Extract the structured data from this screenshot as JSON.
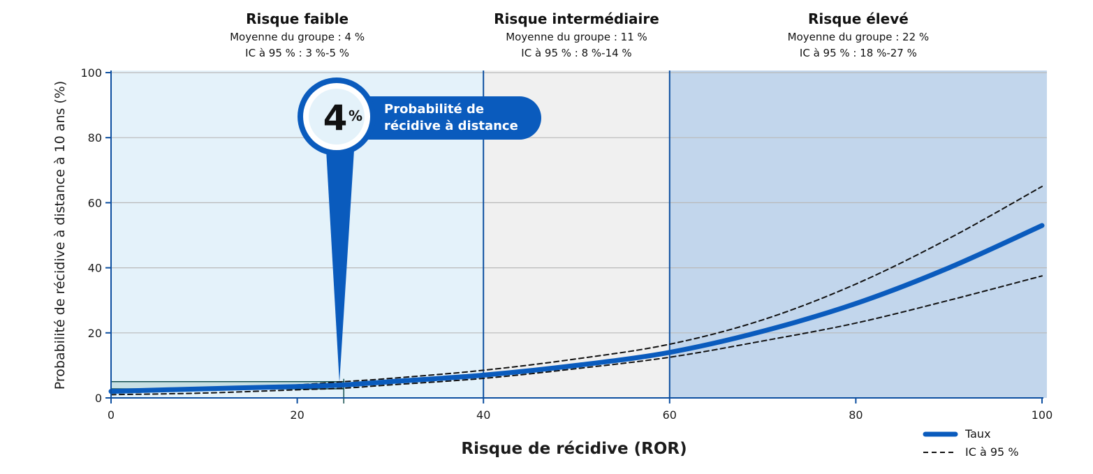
{
  "chart_data": {
    "type": "line",
    "title": "",
    "xlabel": "Risque de récidive (ROR)",
    "ylabel": "Probabilité de récidive à distance à 10 ans (%)",
    "xlim": [
      0,
      100
    ],
    "ylim": [
      0,
      100
    ],
    "xticks": [
      "0",
      "20",
      "40",
      "60",
      "80",
      "100"
    ],
    "yticks": [
      "0",
      "20",
      "40",
      "60",
      "80",
      "100"
    ],
    "grid": "horizontal",
    "legend_position": "bottom-right",
    "zones": [
      {
        "name": "Risque faible",
        "x_range": [
          0,
          40
        ],
        "line1": "Moyenne du groupe : 4 %",
        "line2": "IC à 95 % : 3 %-5 %",
        "color": "#e4f2fa"
      },
      {
        "name": "Risque intermédiaire",
        "x_range": [
          40,
          60
        ],
        "line1": "Moyenne du groupe : 11 %",
        "line2": "IC à 95 % : 8 %-14 %",
        "color": "#f0f0f0"
      },
      {
        "name": "Risque élevé",
        "x_range": [
          60,
          100
        ],
        "line1": "Moyenne du groupe : 22 %",
        "line2": "IC à 95 % : 18 %-27 %",
        "color": "#c2d6ec"
      }
    ],
    "series": [
      {
        "name": "Taux",
        "style": "solid",
        "color": "#0a5bbd",
        "x": [
          0,
          10,
          20,
          25,
          30,
          40,
          50,
          60,
          70,
          80,
          90,
          100
        ],
        "y": [
          2,
          2.8,
          3.5,
          4,
          5,
          7,
          10,
          14,
          20.5,
          29,
          40,
          53
        ]
      },
      {
        "name": "IC à 95 %",
        "style": "dashed",
        "color": "#111111",
        "x": [
          0,
          10,
          20,
          25,
          30,
          40,
          50,
          60,
          70,
          80,
          90,
          100
        ],
        "y": [
          1.5,
          2.5,
          4,
          5,
          6,
          8.5,
          12,
          16.5,
          24,
          35,
          49,
          65
        ]
      },
      {
        "name": "IC à 95 %",
        "style": "dashed",
        "color": "#111111",
        "x": [
          0,
          10,
          20,
          25,
          30,
          40,
          50,
          60,
          70,
          80,
          90,
          100
        ],
        "y": [
          1,
          1.5,
          2.5,
          3,
          4,
          6,
          9,
          12.5,
          17.5,
          23,
          30,
          37.5
        ]
      }
    ],
    "highlight": {
      "x": 25,
      "y": 4,
      "band": [
        3,
        5
      ]
    },
    "callout": {
      "value": "4",
      "unit": "%",
      "line1": "Probabilité de",
      "line2": "récidive à distance"
    },
    "legend": [
      {
        "label": "Taux",
        "style": "solid"
      },
      {
        "label": "IC à 95 %",
        "style": "dashed"
      }
    ]
  }
}
